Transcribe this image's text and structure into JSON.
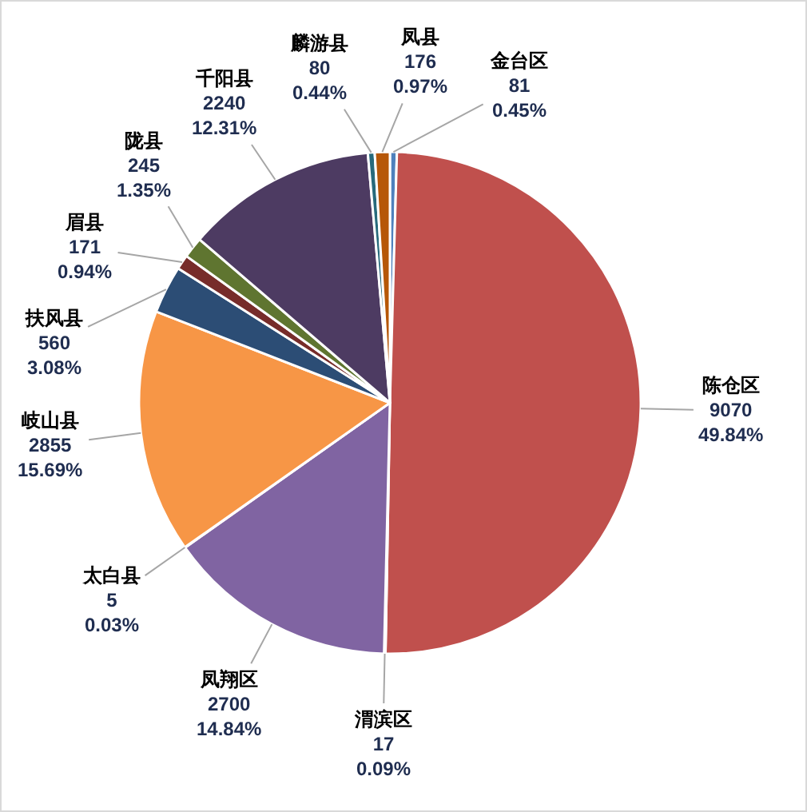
{
  "chart_data": {
    "type": "pie",
    "categories": [
      "金台区",
      "陈仓区",
      "渭滨区",
      "凤翔区",
      "太白县",
      "岐山县",
      "扶风县",
      "眉县",
      "陇县",
      "千阳县",
      "麟游县",
      "凤县"
    ],
    "values": [
      81,
      9070,
      17,
      2700,
      5,
      2855,
      560,
      171,
      245,
      2240,
      80,
      176
    ],
    "colors": [
      "#4f81bd",
      "#c0504d",
      "#9bbb59",
      "#8064a2",
      "#4bacc6",
      "#f79646",
      "#2c4d75",
      "#772c2a",
      "#5f7530",
      "#4d3b62",
      "#276a7c",
      "#b65708"
    ],
    "value_labels": [
      "81\n0.45%",
      "9070\n49.84%",
      "17\n0.09%",
      "2700\n14.84%",
      "5\n0.03%",
      "2855\n15.69%",
      "560\n3.08%",
      "171\n0.94%",
      "245\n1.35%",
      "2240\n12.31%",
      "80\n0.44%",
      "176\n0.97%"
    ]
  }
}
